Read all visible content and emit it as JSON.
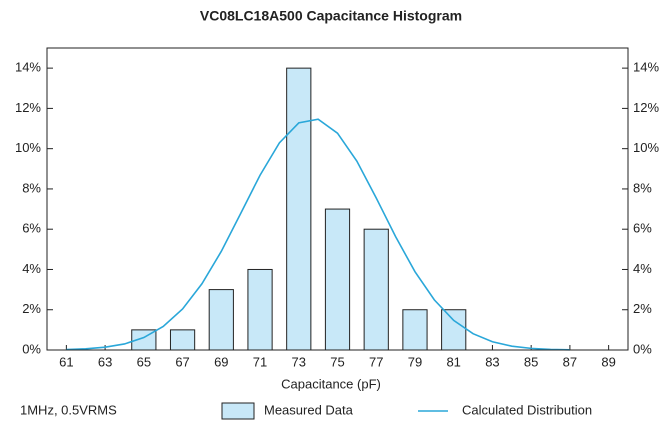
{
  "chart_data": {
    "type": "bar",
    "title": "VC08LC18A500 Capacitance Histogram",
    "xlabel": "Capacitance (pF)",
    "annotation": "1MHz, 0.5VRMS",
    "xlim": [
      60,
      90
    ],
    "xticks": [
      61,
      63,
      65,
      67,
      69,
      71,
      73,
      75,
      77,
      79,
      81,
      83,
      85,
      87,
      89
    ],
    "ylim": [
      0,
      15
    ],
    "yticks": [
      {
        "value": 0,
        "label": "0%"
      },
      {
        "value": 2,
        "label": "2%"
      },
      {
        "value": 4,
        "label": "4%"
      },
      {
        "value": 6,
        "label": "6%"
      },
      {
        "value": 8,
        "label": "8%"
      },
      {
        "value": 10,
        "label": "10%"
      },
      {
        "value": 12,
        "label": "12%"
      },
      {
        "value": 14,
        "label": "14%"
      }
    ],
    "y2lim": [
      0,
      15
    ],
    "y2ticks": [
      {
        "value": 0,
        "label": "0%"
      },
      {
        "value": 2,
        "label": "2%"
      },
      {
        "value": 4,
        "label": "4%"
      },
      {
        "value": 6,
        "label": "6%"
      },
      {
        "value": 8,
        "label": "8%"
      },
      {
        "value": 10,
        "label": "10%"
      },
      {
        "value": 12,
        "label": "12%"
      },
      {
        "value": 14,
        "label": "14%"
      }
    ],
    "series": [
      {
        "name": "Measured Data",
        "type": "bar",
        "color": "#c8e8f8",
        "x": [
          65,
          67,
          69,
          71,
          73,
          75,
          77,
          79,
          81
        ],
        "values": [
          1,
          1,
          3,
          4,
          14,
          7,
          6,
          2,
          2
        ]
      },
      {
        "name": "Calculated Distribution",
        "type": "line",
        "color": "#2aa7d9",
        "x": [
          61,
          62,
          63,
          64,
          65,
          66,
          67,
          68,
          69,
          70,
          71,
          72,
          73,
          74,
          75,
          76,
          77,
          78,
          79,
          80,
          81,
          82,
          83,
          84,
          85,
          86,
          87
        ],
        "values": [
          0.02,
          0.06,
          0.14,
          0.3,
          0.62,
          1.17,
          2.04,
          3.29,
          4.9,
          6.78,
          8.68,
          10.29,
          11.28,
          11.46,
          10.77,
          9.38,
          7.55,
          5.63,
          3.89,
          2.49,
          1.47,
          0.81,
          0.41,
          0.19,
          0.08,
          0.03,
          0.01
        ]
      }
    ]
  }
}
